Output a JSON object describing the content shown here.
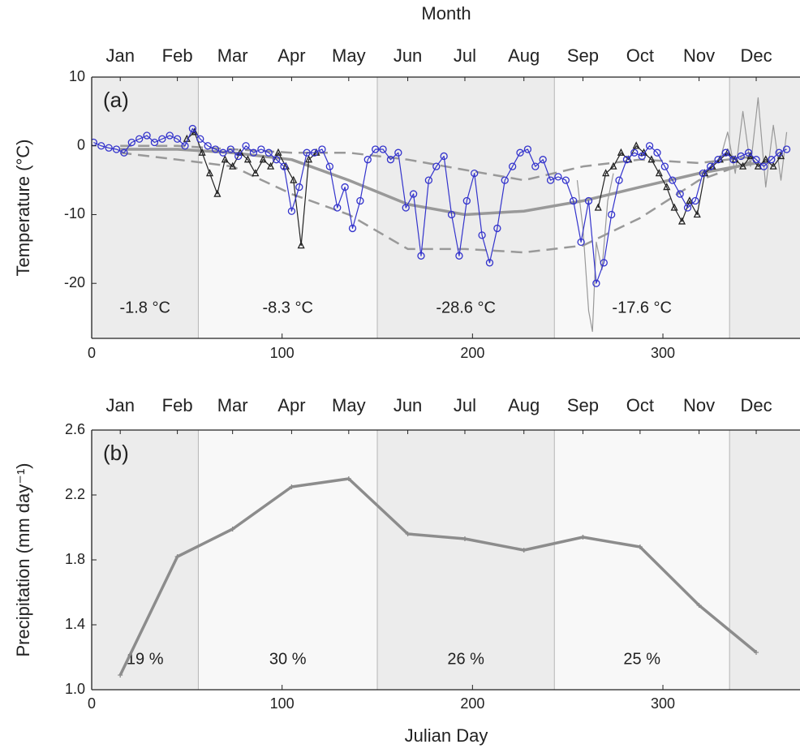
{
  "chart_data": [
    {
      "type": "line",
      "panel_label": "(a)",
      "x2label": "Month",
      "ylabel": "Temperature (°C)",
      "xlim": [
        0,
        372
      ],
      "ylim": [
        -28,
        10
      ],
      "xticks": [
        0,
        100,
        200,
        300
      ],
      "yticks": [
        10,
        0,
        -10,
        -20
      ],
      "x2ticks": [
        {
          "value": 15,
          "label": "Jan"
        },
        {
          "value": 45,
          "label": "Feb"
        },
        {
          "value": 74,
          "label": "Mar"
        },
        {
          "value": 105,
          "label": "Apr"
        },
        {
          "value": 135,
          "label": "May"
        },
        {
          "value": 166,
          "label": "Jun"
        },
        {
          "value": 196,
          "label": "Jul"
        },
        {
          "value": 227,
          "label": "Aug"
        },
        {
          "value": 258,
          "label": "Sep"
        },
        {
          "value": 288,
          "label": "Oct"
        },
        {
          "value": 319,
          "label": "Nov"
        },
        {
          "value": 349,
          "label": "Dec"
        }
      ],
      "bands": [
        {
          "start": 0,
          "end": 56,
          "color": "#ececec",
          "label": "-1.8 °C"
        },
        {
          "start": 56,
          "end": 150,
          "color": "#f8f8f8",
          "label": "-8.3 °C"
        },
        {
          "start": 150,
          "end": 243,
          "color": "#ececec",
          "label": "-28.6 °C"
        },
        {
          "start": 243,
          "end": 335,
          "color": "#f8f8f8",
          "label": "-17.6 °C"
        },
        {
          "start": 335,
          "end": 372,
          "color": "#ececec"
        }
      ],
      "series": [
        {
          "color": "#999999",
          "style": "thin",
          "x": [
            255,
            258,
            261,
            263,
            265,
            268,
            271,
            274,
            300,
            330,
            334,
            338,
            342,
            346,
            350,
            354,
            358,
            362,
            365
          ],
          "values": [
            -5,
            -12,
            -24,
            -27,
            -14,
            -18,
            -8,
            -4,
            null,
            -2,
            2,
            -4,
            5,
            -3,
            7,
            -6,
            3,
            -5,
            2
          ]
        },
        {
          "color": "#999999",
          "style": "dashed",
          "x": [
            15,
            45,
            74,
            105,
            135,
            166,
            196,
            227,
            258,
            288,
            319,
            349
          ],
          "values": [
            -1,
            -2,
            -3,
            -7,
            -10,
            -15,
            -15,
            -15.5,
            -14.5,
            -10.5,
            -5,
            -2
          ]
        },
        {
          "color": "#999999",
          "style": "dashed",
          "x": [
            15,
            45,
            74,
            105,
            135,
            166,
            196,
            227,
            258,
            288,
            319,
            349
          ],
          "values": [
            0,
            0,
            -0.5,
            -1,
            -1,
            -2,
            -3.5,
            -5,
            -3,
            -2,
            -2.5,
            -1.5
          ]
        },
        {
          "color": "#999999",
          "style": "thick",
          "x": [
            15,
            45,
            74,
            105,
            135,
            166,
            196,
            227,
            258,
            288,
            319,
            349
          ],
          "values": [
            -0.5,
            -0.5,
            -1,
            -2,
            -5,
            -8.5,
            -10,
            -9.5,
            -8,
            -6,
            -4,
            -2.5
          ]
        },
        {
          "color": "#222222",
          "style": "thin",
          "marker": "triangle",
          "x": [
            50,
            54,
            58,
            62,
            66,
            70,
            74,
            78,
            82,
            86,
            90,
            94,
            98,
            102,
            106,
            110,
            114,
            118,
            192,
            266,
            270,
            274,
            278,
            282,
            286,
            290,
            294,
            298,
            302,
            306,
            310,
            314,
            318,
            322,
            326,
            330,
            334,
            338,
            342,
            346,
            350,
            354,
            358,
            362
          ],
          "values": [
            1,
            2,
            -1,
            -4,
            -7,
            -2,
            -3,
            -1,
            -2,
            -4,
            -2,
            -3,
            -1,
            -3,
            -5,
            -14.5,
            -2,
            -1,
            null,
            -9,
            -4,
            -3,
            -1,
            -2,
            0,
            -1,
            -2,
            -4,
            -6,
            -9,
            -11,
            -8,
            -10,
            -4,
            -3,
            -2,
            -1,
            -2,
            -3,
            -1.5,
            -3,
            -2,
            -3,
            -1.5
          ]
        },
        {
          "color": "#3333cc",
          "style": "thin",
          "marker": "circle",
          "x": [
            1,
            5,
            9,
            13,
            17,
            21,
            25,
            29,
            33,
            37,
            41,
            45,
            49,
            53,
            57,
            61,
            65,
            69,
            73,
            77,
            81,
            85,
            89,
            93,
            97,
            101,
            105,
            109,
            113,
            117,
            121,
            125,
            129,
            133,
            137,
            141,
            145,
            149,
            153,
            157,
            161,
            165,
            169,
            173,
            177,
            181,
            185,
            189,
            193,
            197,
            201,
            205,
            209,
            213,
            217,
            221,
            225,
            229,
            233,
            237,
            241,
            245,
            249,
            253,
            257,
            261,
            265,
            269,
            273,
            277,
            281,
            285,
            289,
            293,
            297,
            301,
            305,
            309,
            313,
            317,
            321,
            325,
            329,
            333,
            337,
            341,
            345,
            349,
            353,
            357,
            361,
            365
          ],
          "values": [
            0.5,
            0,
            -0.3,
            -0.5,
            -1,
            0.5,
            1,
            1.5,
            0.5,
            1,
            1.5,
            1,
            0,
            2.5,
            1,
            0,
            -0.5,
            -1,
            -0.5,
            -1.5,
            0,
            -1,
            -0.5,
            -1,
            -2,
            -3,
            -9.5,
            -6,
            -1,
            -1,
            -0.5,
            -3,
            -9,
            -6,
            -12,
            -8,
            -2,
            -0.5,
            -0.5,
            -2,
            -1,
            -9,
            -7,
            -16,
            -5,
            -3,
            -1.5,
            -10,
            -16,
            -8,
            -4,
            -13,
            -17,
            -12,
            -5,
            -3,
            -1,
            -0.5,
            -3,
            -2,
            -5,
            -4.5,
            -5,
            -8,
            -14,
            -8,
            -20,
            -17,
            -10,
            -5,
            -2,
            -1,
            -1.5,
            0,
            -1,
            -3,
            -5,
            -7,
            -9,
            -8,
            -4,
            -3,
            -2,
            -1,
            -2,
            -1.5,
            -1,
            -2,
            -3,
            -2,
            -1,
            -0.5
          ]
        }
      ]
    },
    {
      "type": "line",
      "panel_label": "(b)",
      "xlabel": "Julian Day",
      "ylabel": "Precipitation (mm day⁻¹)",
      "xlim": [
        0,
        372
      ],
      "ylim": [
        1.0,
        2.6
      ],
      "xticks": [
        0,
        100,
        200,
        300
      ],
      "yticks": [
        {
          "value": 1,
          "label": "1.0"
        },
        1.4,
        1.8,
        2.2,
        2.6
      ],
      "x2ticks": [
        {
          "value": 15,
          "label": "Jan"
        },
        {
          "value": 45,
          "label": "Feb"
        },
        {
          "value": 74,
          "label": "Mar"
        },
        {
          "value": 105,
          "label": "Apr"
        },
        {
          "value": 135,
          "label": "May"
        },
        {
          "value": 166,
          "label": "Jun"
        },
        {
          "value": 196,
          "label": "Jul"
        },
        {
          "value": 227,
          "label": "Aug"
        },
        {
          "value": 258,
          "label": "Sep"
        },
        {
          "value": 288,
          "label": "Oct"
        },
        {
          "value": 319,
          "label": "Nov"
        },
        {
          "value": 349,
          "label": "Dec"
        }
      ],
      "bands": [
        {
          "start": 0,
          "end": 56,
          "color": "#ececec",
          "label": "19 %"
        },
        {
          "start": 56,
          "end": 150,
          "color": "#f8f8f8",
          "label": "30 %"
        },
        {
          "start": 150,
          "end": 243,
          "color": "#ececec",
          "label": "26 %"
        },
        {
          "start": 243,
          "end": 335,
          "color": "#f8f8f8",
          "label": "25 %"
        },
        {
          "start": 335,
          "end": 372,
          "color": "#ececec"
        }
      ],
      "series": [
        {
          "color": "#8c8c8c",
          "style": "thick",
          "marker": "plus",
          "x": [
            15,
            45,
            74,
            105,
            135,
            166,
            196,
            227,
            258,
            288,
            319,
            349
          ],
          "values": [
            1.09,
            1.82,
            1.99,
            2.25,
            2.3,
            1.96,
            1.93,
            1.86,
            1.94,
            1.88,
            1.52,
            1.23
          ]
        }
      ]
    }
  ]
}
